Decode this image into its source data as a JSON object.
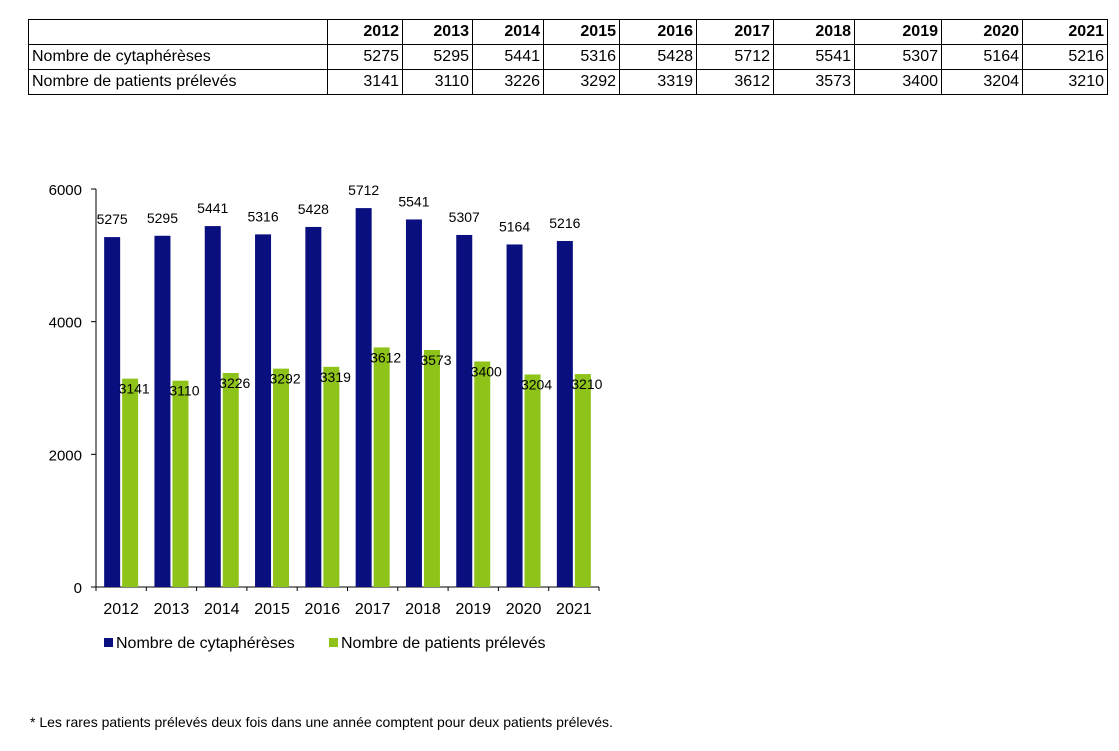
{
  "table": {
    "years": [
      "2012",
      "2013",
      "2014",
      "2015",
      "2016",
      "2017",
      "2018",
      "2019",
      "2020",
      "2021"
    ],
    "rows": [
      {
        "label": "Nombre de cytaphérèses",
        "values": [
          "5275",
          "5295",
          "5441",
          "5316",
          "5428",
          "5712",
          "5541",
          "5307",
          "5164",
          "5216"
        ]
      },
      {
        "label": "Nombre de patients prélevés",
        "values": [
          "3141",
          "3110",
          "3226",
          "3292",
          "3319",
          "3612",
          "3573",
          "3400",
          "3204",
          "3210"
        ]
      }
    ]
  },
  "chart_data": {
    "type": "bar",
    "categories": [
      "2012",
      "2013",
      "2014",
      "2015",
      "2016",
      "2017",
      "2018",
      "2019",
      "2020",
      "2021"
    ],
    "series": [
      {
        "name": "Nombre de cytaphérèses",
        "color": "#0a0f80",
        "values": [
          5275,
          5295,
          5441,
          5316,
          5428,
          5712,
          5541,
          5307,
          5164,
          5216
        ]
      },
      {
        "name": "Nombre de patients prélevés",
        "color": "#8ec31a",
        "values": [
          3141,
          3110,
          3226,
          3292,
          3319,
          3612,
          3573,
          3400,
          3204,
          3210
        ]
      }
    ],
    "y_ticks": [
      0,
      2000,
      4000,
      6000
    ],
    "ylim": [
      0,
      6000
    ],
    "grid": false,
    "legend": "bottom",
    "title": "",
    "xlabel": "",
    "ylabel": ""
  },
  "footnote": "* Les rares patients prélevés deux fois dans une année comptent pour deux patients prélevés."
}
